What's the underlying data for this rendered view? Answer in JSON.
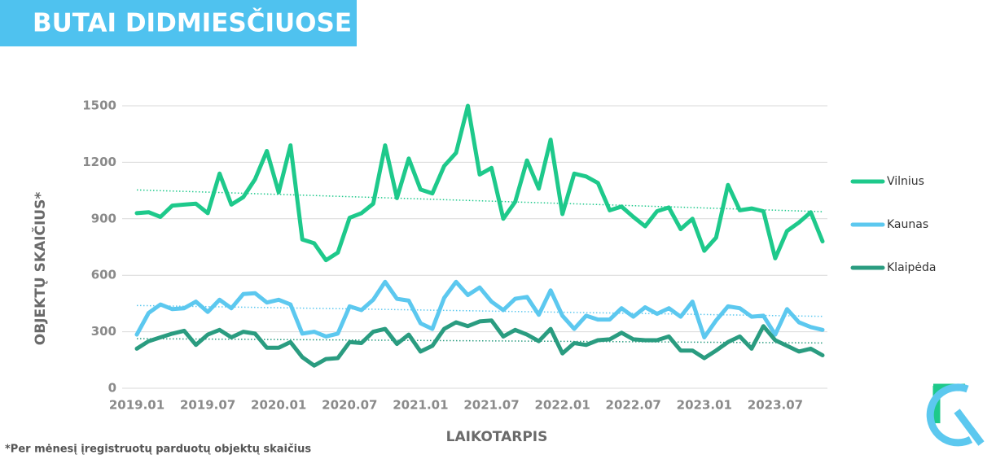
{
  "chart_data": {
    "type": "line",
    "title": "BUTAI DIDMIESČIUOSE",
    "y_label": "OBJEKTŲ SKAIČIUS*",
    "x_label": "LAIKOTARPIS",
    "footnote": "*Per mėnesį įregistruotų parduotų objektų skaičius",
    "categories": [
      "2019.01",
      null,
      null,
      null,
      null,
      null,
      "2019.07",
      null,
      null,
      null,
      null,
      null,
      "2020.01",
      null,
      null,
      null,
      null,
      null,
      "2020.07",
      null,
      null,
      null,
      null,
      null,
      "2021.01",
      null,
      null,
      null,
      null,
      null,
      "2021.07",
      null,
      null,
      null,
      null,
      null,
      "2022.01",
      null,
      null,
      null,
      null,
      null,
      "2022.07",
      null,
      null,
      null,
      null,
      null,
      "2023.01",
      null,
      null,
      null,
      null,
      null,
      "2023.07",
      null,
      null,
      null,
      null
    ],
    "series": [
      {
        "name": "Vilnius",
        "color": "#1ec98b",
        "values": [
          930,
          935,
          910,
          970,
          975,
          980,
          930,
          1140,
          975,
          1015,
          1110,
          1260,
          1040,
          1290,
          790,
          770,
          680,
          720,
          905,
          930,
          980,
          1290,
          1010,
          1220,
          1055,
          1035,
          1180,
          1250,
          1500,
          1135,
          1170,
          900,
          990,
          1210,
          1060,
          1320,
          925,
          1140,
          1125,
          1090,
          945,
          965,
          910,
          860,
          940,
          960,
          845,
          900,
          730,
          800,
          1080,
          945,
          955,
          940,
          690,
          835,
          880,
          935,
          780
        ]
      },
      {
        "name": "Kaunas",
        "color": "#5cc8ef",
        "values": [
          285,
          400,
          445,
          420,
          425,
          460,
          405,
          470,
          425,
          500,
          505,
          455,
          470,
          445,
          290,
          300,
          275,
          290,
          435,
          415,
          470,
          565,
          475,
          465,
          345,
          315,
          480,
          565,
          495,
          535,
          460,
          415,
          475,
          485,
          390,
          520,
          385,
          315,
          385,
          365,
          365,
          425,
          380,
          430,
          395,
          425,
          380,
          460,
          270,
          360,
          435,
          425,
          380,
          385,
          285,
          420,
          350,
          325,
          310
        ]
      },
      {
        "name": "Klaipėda",
        "color": "#2a9c80",
        "values": [
          210,
          250,
          270,
          290,
          305,
          230,
          285,
          310,
          270,
          300,
          290,
          215,
          215,
          245,
          165,
          120,
          155,
          160,
          245,
          240,
          300,
          315,
          235,
          285,
          195,
          225,
          315,
          350,
          330,
          355,
          360,
          275,
          310,
          285,
          250,
          315,
          185,
          240,
          230,
          255,
          260,
          295,
          260,
          255,
          255,
          275,
          200,
          200,
          160,
          200,
          245,
          275,
          210,
          330,
          255,
          225,
          195,
          210,
          175
        ]
      }
    ],
    "ylim": [
      0,
      1500
    ],
    "yticks": [
      0,
      300,
      600,
      900,
      1200,
      1500
    ],
    "grid": true,
    "trendline": true,
    "legend": "right"
  }
}
